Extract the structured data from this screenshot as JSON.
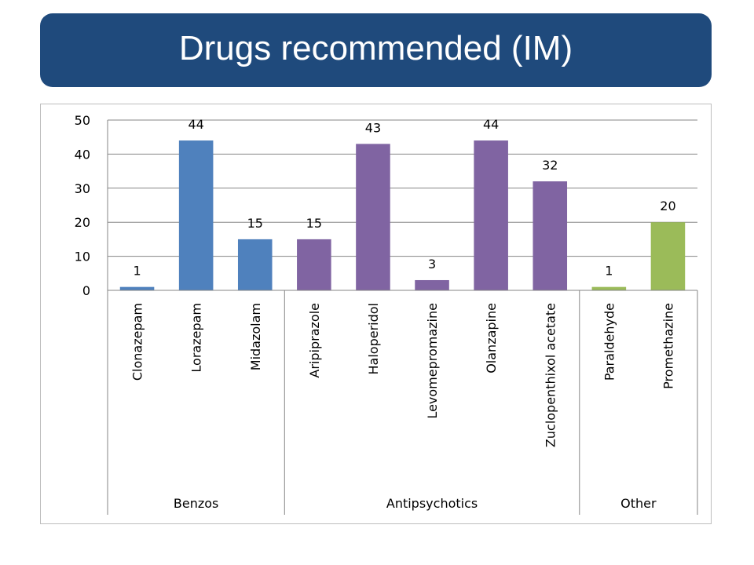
{
  "title": "Drugs recommended (IM)",
  "chart_data": {
    "type": "bar",
    "title": "",
    "xlabel": "",
    "ylabel": "",
    "ylim": [
      0,
      50
    ],
    "yticks": [
      0,
      10,
      20,
      30,
      40,
      50
    ],
    "grid": true,
    "legend": "none",
    "categories": [
      "Clonazepam",
      "Lorazepam",
      "Midazolam",
      "Aripiprazole",
      "Haloperidol",
      "Levomepromazine",
      "Olanzapine",
      "Zuclopenthixol acetate",
      "Paraldehyde",
      "Promethazine"
    ],
    "values": [
      1,
      44,
      15,
      15,
      43,
      3,
      44,
      32,
      1,
      20
    ],
    "data_labels": [
      "1",
      "44",
      "15",
      "15",
      "43",
      "3",
      "44",
      "32",
      "1",
      "20"
    ],
    "groups": [
      {
        "label": "Benzos",
        "start": 0,
        "count": 3,
        "color": "#4f81bd"
      },
      {
        "label": "Antipsychotics",
        "start": 3,
        "count": 5,
        "color": "#8064a2"
      },
      {
        "label": "Other",
        "start": 8,
        "count": 2,
        "color": "#9bbb59"
      }
    ],
    "bar_colors": [
      "#4f81bd",
      "#4f81bd",
      "#4f81bd",
      "#8064a2",
      "#8064a2",
      "#8064a2",
      "#8064a2",
      "#8064a2",
      "#9bbb59",
      "#9bbb59"
    ]
  }
}
